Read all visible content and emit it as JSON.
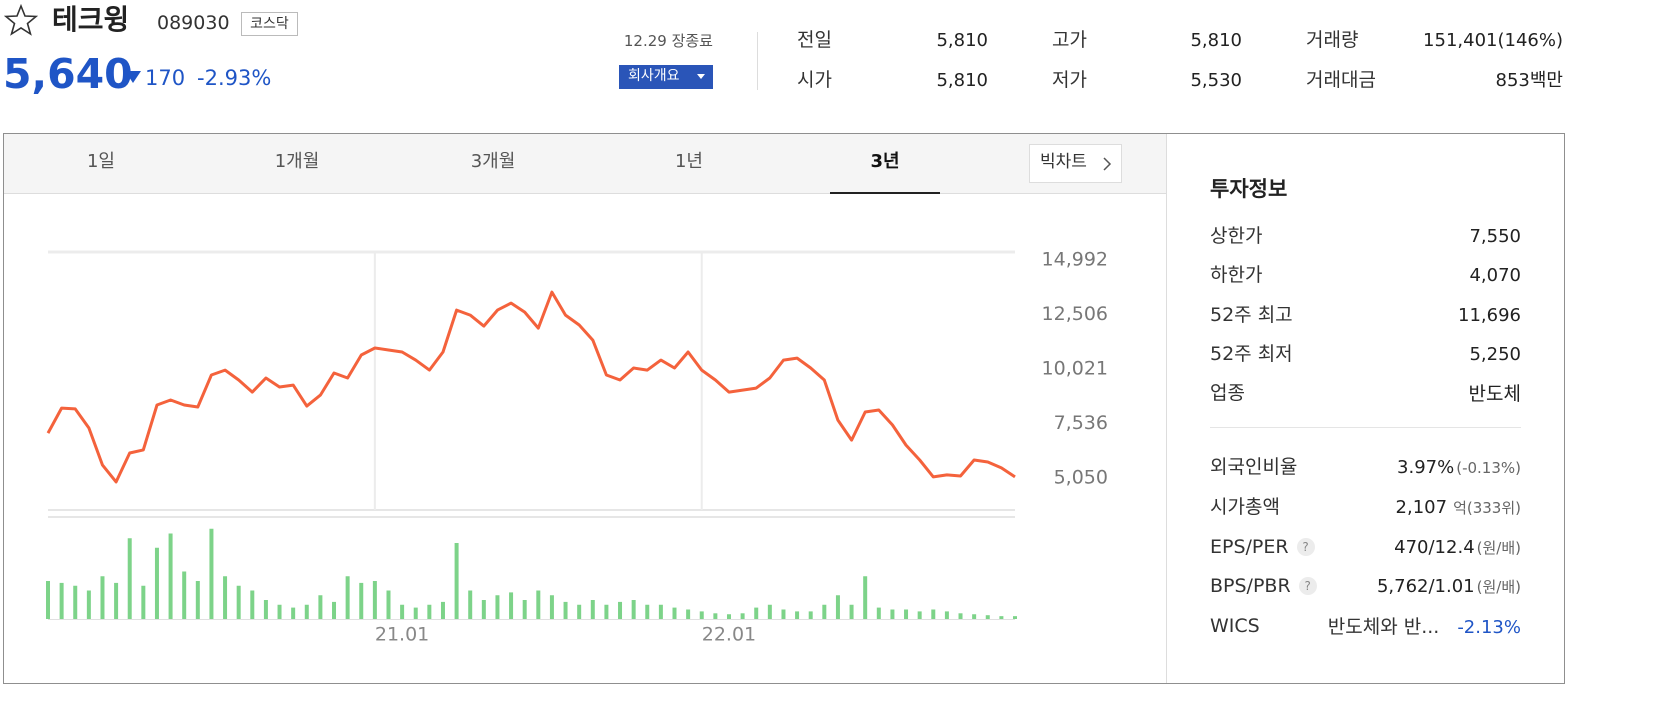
{
  "header": {
    "name": "테크윙",
    "code": "089030",
    "market": "코스닥"
  },
  "quote": {
    "price": "5,640",
    "change": "170",
    "change_pct": "-2.93%"
  },
  "status": "12.29 장종료",
  "company_button": "회사개요",
  "summary": [
    {
      "label": "전일",
      "value": "5,810"
    },
    {
      "label": "고가",
      "value": "5,810"
    },
    {
      "label": "거래량",
      "value": "151,401(146%)"
    },
    {
      "label": "시가",
      "value": "5,810"
    },
    {
      "label": "저가",
      "value": "5,530"
    },
    {
      "label": "거래대금",
      "value": "853백만"
    }
  ],
  "tabs": [
    "1일",
    "1개월",
    "3개월",
    "1년",
    "3년"
  ],
  "big_chart": "빅차트",
  "chart_data": [
    {
      "type": "line",
      "color": "#f4623c",
      "x": [
        0,
        0.5,
        1,
        1.5,
        2,
        2.5,
        3,
        3.5,
        4,
        4.5,
        5,
        5.5,
        6,
        6.5,
        7,
        7.5,
        8,
        8.5,
        9,
        9.5,
        10,
        10.5,
        11,
        11.5,
        12,
        12.5,
        13,
        13.5,
        14,
        14.5,
        15,
        15.5,
        16,
        16.5,
        17,
        17.5,
        18,
        18.5,
        19,
        19.5,
        20,
        20.5,
        21,
        21.5,
        22,
        22.5,
        23,
        23.5,
        24,
        24.5,
        25,
        25.5,
        26,
        26.5,
        27,
        27.5,
        28,
        28.5,
        29,
        29.5,
        30,
        30.5,
        31,
        31.5,
        32,
        32.5,
        33,
        33.5,
        34,
        34.5,
        35,
        35.5
      ],
      "values": [
        7100,
        8240,
        8200,
        7330,
        5640,
        4870,
        6190,
        6330,
        8380,
        8610,
        8380,
        8290,
        9750,
        9970,
        9520,
        8970,
        9610,
        9200,
        9290,
        8330,
        8830,
        9840,
        9610,
        10660,
        10980,
        10890,
        10800,
        10430,
        9970,
        10800,
        12710,
        12480,
        11980,
        12710,
        13030,
        12620,
        11890,
        13530,
        12480,
        12030,
        11340,
        9750,
        9520,
        10070,
        9970,
        10430,
        10070,
        10800,
        9970,
        9520,
        8970,
        9060,
        9150,
        9610,
        10430,
        10520,
        10070,
        9520,
        7690,
        6780,
        8060,
        8150,
        7470,
        6550,
        5870,
        5100,
        5190,
        5140,
        5870,
        5780,
        5510,
        5100
      ],
      "xlim": [
        0,
        35.5
      ],
      "ylim": [
        3590,
        15360
      ],
      "yticks": [
        {
          "value": 14992,
          "label": "14,992"
        },
        {
          "value": 12506,
          "label": "12,506"
        },
        {
          "value": 10021,
          "label": "10,021"
        },
        {
          "value": 7536,
          "label": "7,536"
        },
        {
          "value": 5050,
          "label": "5,050"
        }
      ],
      "xticks": [
        {
          "value": 12,
          "label": "21.01"
        },
        {
          "value": 24,
          "label": "22.01"
        }
      ],
      "grid": "x"
    },
    {
      "type": "bar",
      "color": "#7dd389",
      "x": [
        0,
        0.5,
        1,
        1.5,
        2,
        2.5,
        3,
        3.5,
        4,
        4.5,
        5,
        5.5,
        6,
        6.5,
        7,
        7.5,
        8,
        8.5,
        9,
        9.5,
        10,
        10.5,
        11,
        11.5,
        12,
        12.5,
        13,
        13.5,
        14,
        14.5,
        15,
        15.5,
        16,
        16.5,
        17,
        17.5,
        18,
        18.5,
        19,
        19.5,
        20,
        20.5,
        21,
        21.5,
        22,
        22.5,
        23,
        23.5,
        24,
        24.5,
        25,
        25.5,
        26,
        26.5,
        27,
        27.5,
        28,
        28.5,
        29,
        29.5,
        30,
        30.5,
        31,
        31.5,
        32,
        32.5,
        33,
        33.5,
        34,
        34.5,
        35,
        35.5
      ],
      "values": [
        40,
        38,
        35,
        30,
        45,
        38,
        85,
        35,
        75,
        90,
        50,
        40,
        95,
        45,
        35,
        30,
        20,
        15,
        12,
        15,
        25,
        18,
        45,
        38,
        40,
        30,
        15,
        12,
        15,
        18,
        80,
        30,
        20,
        25,
        28,
        20,
        30,
        25,
        18,
        15,
        20,
        15,
        18,
        20,
        15,
        15,
        12,
        10,
        8,
        6,
        5,
        6,
        12,
        15,
        10,
        8,
        8,
        15,
        25,
        15,
        45,
        12,
        10,
        10,
        8,
        10,
        8,
        6,
        5,
        4,
        3,
        3
      ],
      "xlim": [
        0,
        35.5
      ],
      "ylim": [
        0,
        100
      ]
    }
  ],
  "invest_info": {
    "title": "투자정보",
    "help": "?",
    "rows": [
      {
        "label": "상한가",
        "value": "7,550"
      },
      {
        "label": "하한가",
        "value": "4,070"
      },
      {
        "label": "52주 최고",
        "value": "11,696"
      },
      {
        "label": "52주 최저",
        "value": "5,250"
      },
      {
        "label": "업종",
        "value": "반도체"
      },
      {
        "label": "외국인비율",
        "value": "3.97%",
        "sub": "(-0.13%)"
      },
      {
        "label": "시가총액",
        "value": "2,107",
        "sub": "억(333위)"
      },
      {
        "label": "EPS/PER",
        "value": "470/12.4",
        "sub": "(원/배)"
      },
      {
        "label": "BPS/PBR",
        "value": "5,762/1.01",
        "sub": "(원/배)"
      },
      {
        "label": "WICS",
        "value": "반도체와 반...",
        "sub": "-2.13%"
      }
    ]
  }
}
